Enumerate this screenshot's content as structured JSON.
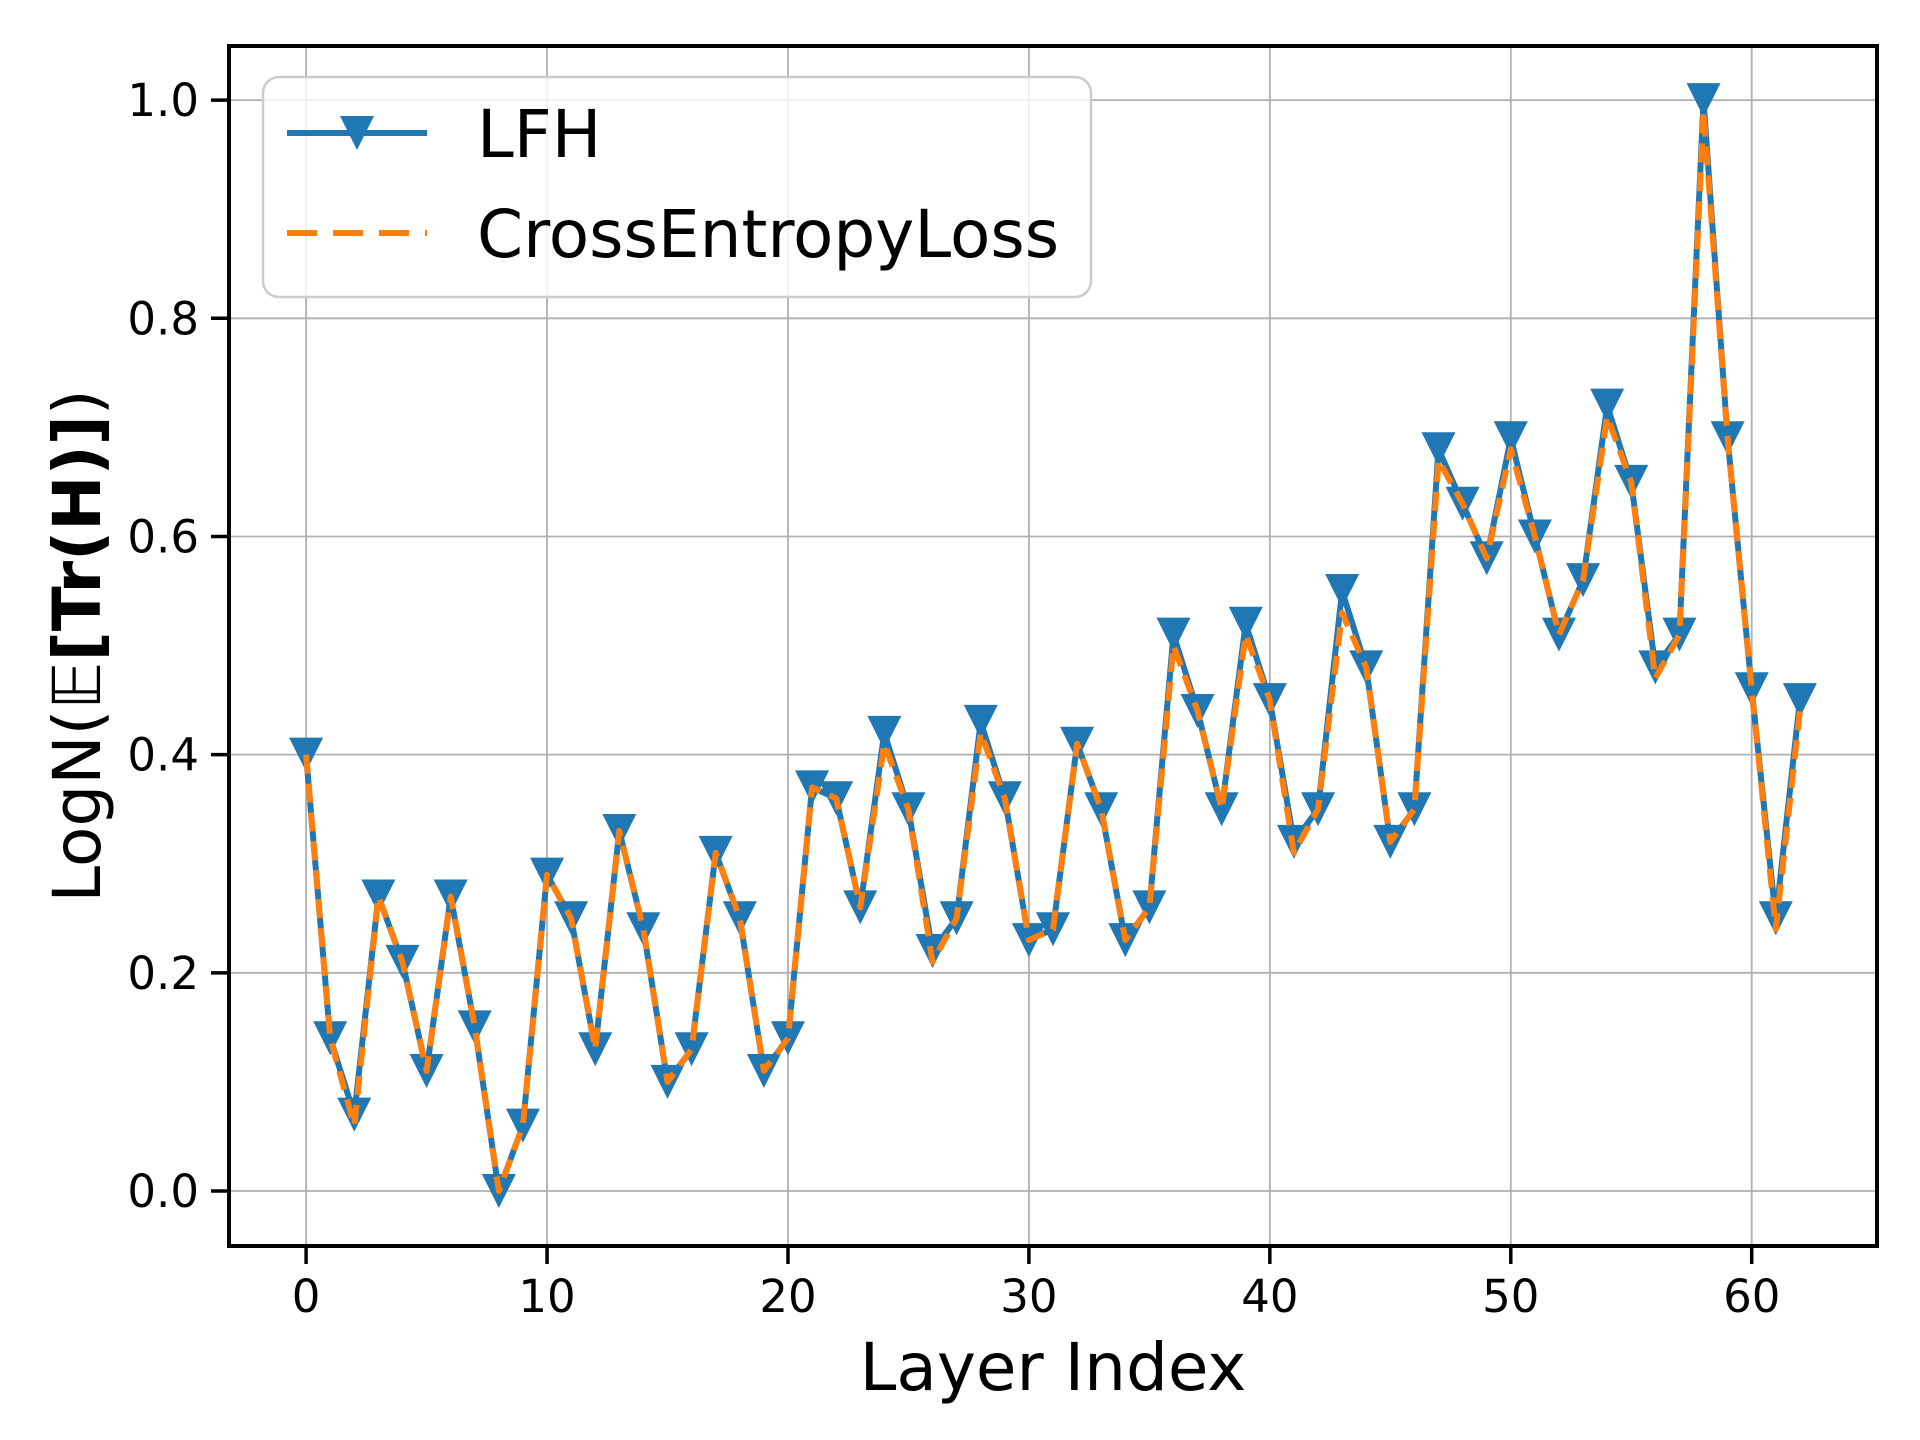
{
  "figure": {
    "background": "#ffffff"
  },
  "chart_data": {
    "type": "line",
    "title": "",
    "xlabel": "Layer Index",
    "ylabel": "LogN(𝔼[Tr(H)])",
    "ylabel_parts": [
      {
        "text": "LogN(",
        "bold": false,
        "blackboard": false
      },
      {
        "text": "𝔼",
        "bold": false,
        "blackboard": true
      },
      {
        "text": "[Tr(",
        "bold": true,
        "blackboard": false
      },
      {
        "text": "H",
        "bold": true,
        "blackboard": false
      },
      {
        "text": ")]",
        "bold": true,
        "blackboard": false
      },
      {
        "text": ")",
        "bold": false,
        "blackboard": false
      }
    ],
    "x": [
      0,
      1,
      2,
      3,
      4,
      5,
      6,
      7,
      8,
      9,
      10,
      11,
      12,
      13,
      14,
      15,
      16,
      17,
      18,
      19,
      20,
      21,
      22,
      23,
      24,
      25,
      26,
      27,
      28,
      29,
      30,
      31,
      32,
      33,
      34,
      35,
      36,
      37,
      38,
      39,
      40,
      41,
      42,
      43,
      44,
      45,
      46,
      47,
      48,
      49,
      50,
      51,
      52,
      53,
      54,
      55,
      56,
      57,
      58,
      59,
      60,
      61,
      62
    ],
    "series": [
      {
        "name": "LFH",
        "color": "#1f77b4",
        "style": "solid",
        "marker": "triangle-down",
        "values": [
          0.4,
          0.14,
          0.07,
          0.27,
          0.21,
          0.11,
          0.27,
          0.15,
          0.0,
          0.06,
          0.29,
          0.25,
          0.13,
          0.33,
          0.24,
          0.1,
          0.13,
          0.31,
          0.25,
          0.11,
          0.14,
          0.37,
          0.36,
          0.26,
          0.42,
          0.35,
          0.22,
          0.25,
          0.43,
          0.36,
          0.23,
          0.24,
          0.41,
          0.35,
          0.23,
          0.26,
          0.51,
          0.44,
          0.35,
          0.52,
          0.45,
          0.32,
          0.35,
          0.55,
          0.48,
          0.32,
          0.35,
          0.68,
          0.63,
          0.58,
          0.69,
          0.6,
          0.51,
          0.56,
          0.72,
          0.65,
          0.48,
          0.51,
          1.0,
          0.69,
          0.46,
          0.25,
          0.45
        ]
      },
      {
        "name": "CrossEntropyLoss",
        "color": "#ff7f0e",
        "style": "dashed",
        "marker": "none",
        "values": [
          0.4,
          0.14,
          0.06,
          0.27,
          0.21,
          0.11,
          0.27,
          0.15,
          0.0,
          0.06,
          0.29,
          0.25,
          0.13,
          0.33,
          0.24,
          0.1,
          0.13,
          0.31,
          0.25,
          0.11,
          0.14,
          0.37,
          0.36,
          0.26,
          0.41,
          0.35,
          0.21,
          0.25,
          0.42,
          0.36,
          0.23,
          0.24,
          0.41,
          0.35,
          0.23,
          0.26,
          0.5,
          0.44,
          0.35,
          0.51,
          0.45,
          0.31,
          0.35,
          0.53,
          0.48,
          0.32,
          0.35,
          0.67,
          0.63,
          0.58,
          0.68,
          0.6,
          0.51,
          0.56,
          0.71,
          0.65,
          0.47,
          0.51,
          0.99,
          0.69,
          0.46,
          0.24,
          0.44
        ]
      }
    ],
    "xlim": [
      -3.2,
      65.2
    ],
    "ylim": [
      -0.0504,
      1.0496
    ],
    "xticks": [
      0,
      10,
      20,
      30,
      40,
      50,
      60
    ],
    "xtick_labels": [
      "0",
      "10",
      "20",
      "30",
      "40",
      "50",
      "60"
    ],
    "yticks": [
      0.0,
      0.2,
      0.4,
      0.6,
      0.8,
      1.0
    ],
    "ytick_labels": [
      "0.0",
      "0.2",
      "0.4",
      "0.6",
      "0.8",
      "1.0"
    ],
    "grid": true,
    "grid_color": "#b0b0b0",
    "spine_color": "#000000",
    "legend": {
      "position": "upper-left",
      "entries": [
        "LFH",
        "CrossEntropyLoss"
      ],
      "border_color": "#cccccc",
      "background": "rgba(255,255,255,0.8)"
    }
  }
}
